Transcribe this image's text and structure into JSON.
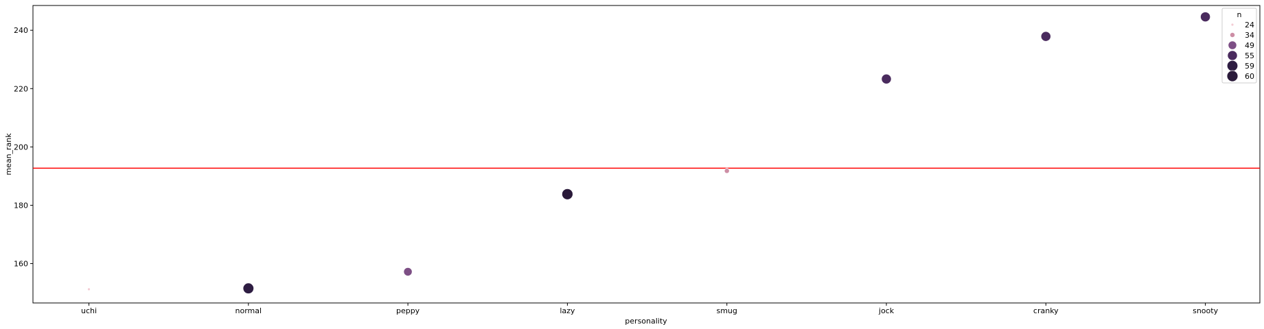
{
  "chart_data": {
    "type": "scatter",
    "xlabel": "personality",
    "ylabel": "mean_rank",
    "categories": [
      "uchi",
      "normal",
      "peppy",
      "lazy",
      "smug",
      "jock",
      "cranky",
      "snooty"
    ],
    "points": [
      {
        "x": "uchi",
        "y": 151.2,
        "n": 24
      },
      {
        "x": "normal",
        "y": 151.5,
        "n": 59
      },
      {
        "x": "peppy",
        "y": 157.2,
        "n": 49
      },
      {
        "x": "lazy",
        "y": 183.8,
        "n": 60
      },
      {
        "x": "smug",
        "y": 191.8,
        "n": 34
      },
      {
        "x": "jock",
        "y": 223.3,
        "n": 55
      },
      {
        "x": "cranky",
        "y": 237.9,
        "n": 55
      },
      {
        "x": "snooty",
        "y": 244.6,
        "n": 55
      }
    ],
    "hline": {
      "y": 192.7,
      "color": "#ff0000"
    },
    "ylim": [
      146.5,
      248.5
    ],
    "yticks": [
      160,
      180,
      200,
      220,
      240
    ],
    "grid": false,
    "legend": {
      "title": "n",
      "placement": "top-right",
      "entries": [
        {
          "label": "24",
          "value": 24,
          "color": "#f3cbd3"
        },
        {
          "label": "34",
          "value": 34,
          "color": "#cd8ea5"
        },
        {
          "label": "49",
          "value": 49,
          "color": "#7d4f85"
        },
        {
          "label": "55",
          "value": 55,
          "color": "#4a2b5e"
        },
        {
          "label": "59",
          "value": 59,
          "color": "#2e1d42"
        },
        {
          "label": "60",
          "value": 60,
          "color": "#2a1a3a"
        }
      ]
    }
  }
}
